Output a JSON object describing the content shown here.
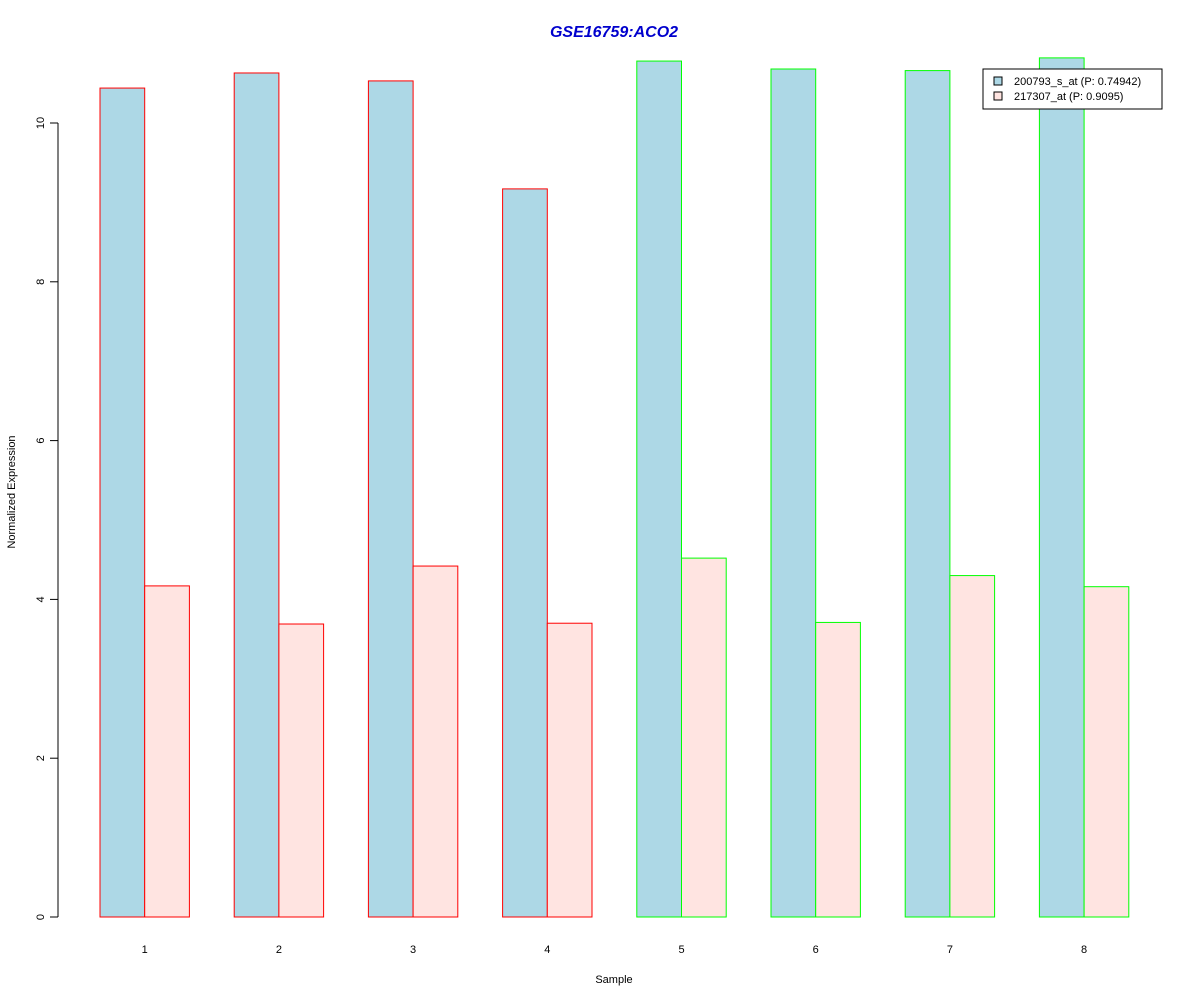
{
  "chart_data": {
    "type": "bar",
    "title": "GSE16759:ACO2",
    "xlabel": "Sample",
    "ylabel": "Normalized Expression",
    "categories": [
      "1",
      "2",
      "3",
      "4",
      "5",
      "6",
      "7",
      "8"
    ],
    "ylim": [
      0,
      10
    ],
    "yticks": [
      "0",
      "2",
      "4",
      "6",
      "8",
      "10"
    ],
    "series": [
      {
        "name": "200793_s_at (P: 0.74942)",
        "fill": "#add8e6",
        "values": [
          10.44,
          10.63,
          10.53,
          9.17,
          10.78,
          10.68,
          10.66,
          10.82
        ]
      },
      {
        "name": "217307_at (P: 0.9095)",
        "fill": "#ffe4e1",
        "values": [
          4.17,
          3.69,
          4.42,
          3.7,
          4.52,
          3.71,
          4.3,
          4.16
        ]
      }
    ],
    "group_colors": [
      "#ff0000",
      "#ff0000",
      "#ff0000",
      "#ff0000",
      "#00ff00",
      "#00ff00",
      "#00ff00",
      "#00ff00"
    ],
    "title_color": "#0000cd",
    "legend_position": "top-right",
    "grid": false
  }
}
